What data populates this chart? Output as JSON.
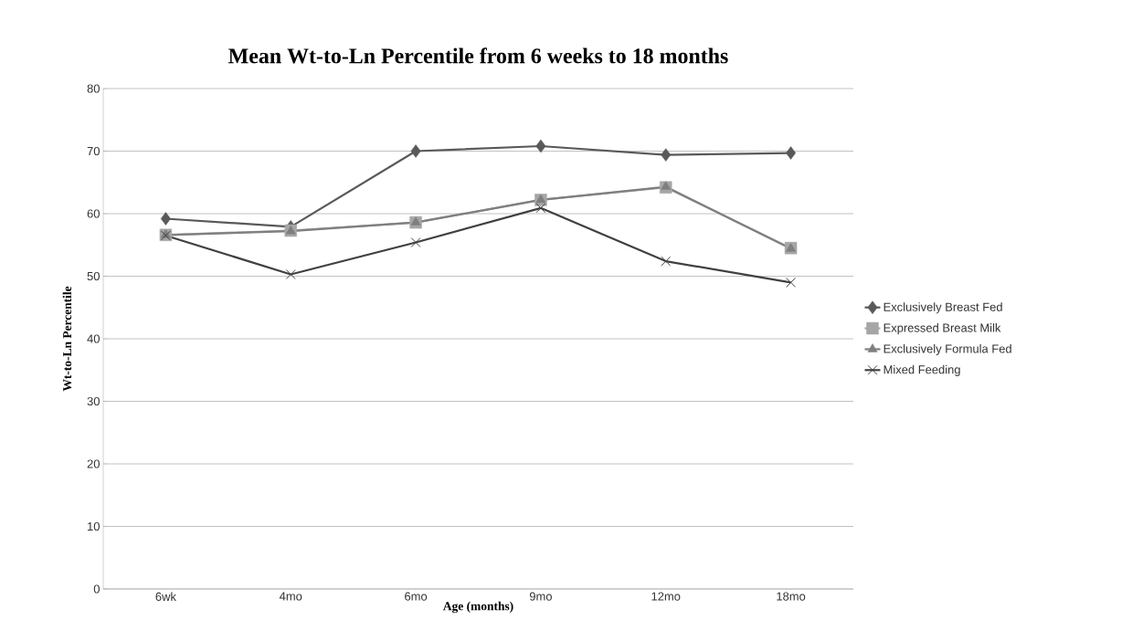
{
  "chart_data": {
    "type": "line",
    "title": "Mean Wt-to-Ln Percentile from 6 weeks to 18 months",
    "xlabel": "Age (months)",
    "ylabel": "Wt-to-Ln Percentile",
    "categories": [
      "6wk",
      "4mo",
      "6mo",
      "9mo",
      "12mo",
      "18mo"
    ],
    "series": [
      {
        "name": "Exclusively Breast Fed",
        "color": "#595959",
        "marker": "diamond",
        "values": [
          59.2,
          57.9,
          70.0,
          70.8,
          69.4,
          69.7
        ]
      },
      {
        "name": "Expressed Breast Milk",
        "color": "#a6a6a6",
        "marker": "square",
        "values": [
          56.6,
          57.3,
          58.6,
          62.2,
          64.2,
          54.5
        ]
      },
      {
        "name": "Exclusively Formula Fed",
        "color": "#7f7f7f",
        "marker": "triangle",
        "values": [
          56.6,
          57.2,
          58.6,
          62.2,
          64.3,
          54.4
        ]
      },
      {
        "name": "Mixed Feeding",
        "color": "#404040",
        "marker": "cross",
        "values": [
          56.5,
          50.3,
          55.4,
          60.9,
          52.4,
          49.0
        ]
      }
    ],
    "ylim": [
      0,
      80
    ],
    "yticks": [
      0,
      10,
      20,
      30,
      40,
      50,
      60,
      70,
      80
    ],
    "grid": "y",
    "legend": "right",
    "line_style": "solid"
  }
}
